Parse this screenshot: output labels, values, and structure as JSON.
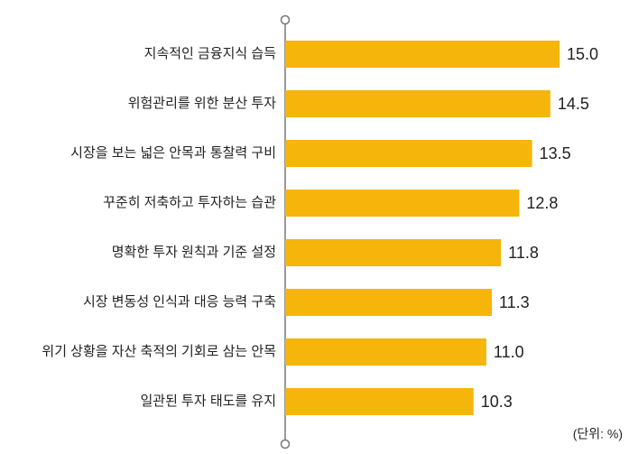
{
  "chart_data": {
    "type": "barh",
    "categories": [
      "지속적인 금융지식 습득",
      "위험관리를 위한 분산 투자",
      "시장을 보는 넓은 안목과 통찰력 구비",
      "꾸준히 저축하고 투자하는 습관",
      "명확한 투자 원칙과 기준 설정",
      "시장 변동성 인식과 대응 능력 구축",
      "위기 상황을 자산 축적의 기회로 삼는 안목",
      "일관된 투자 태도를 유지"
    ],
    "values": [
      15.0,
      14.5,
      13.5,
      12.8,
      11.8,
      11.3,
      11.0,
      10.3
    ],
    "value_labels": [
      "15.0",
      "14.5",
      "13.5",
      "12.8",
      "11.8",
      "11.3",
      "11.0",
      "10.3"
    ],
    "color": "#f5b50a",
    "xlim": [
      0,
      15
    ],
    "unit_note": "(단위: %)"
  }
}
